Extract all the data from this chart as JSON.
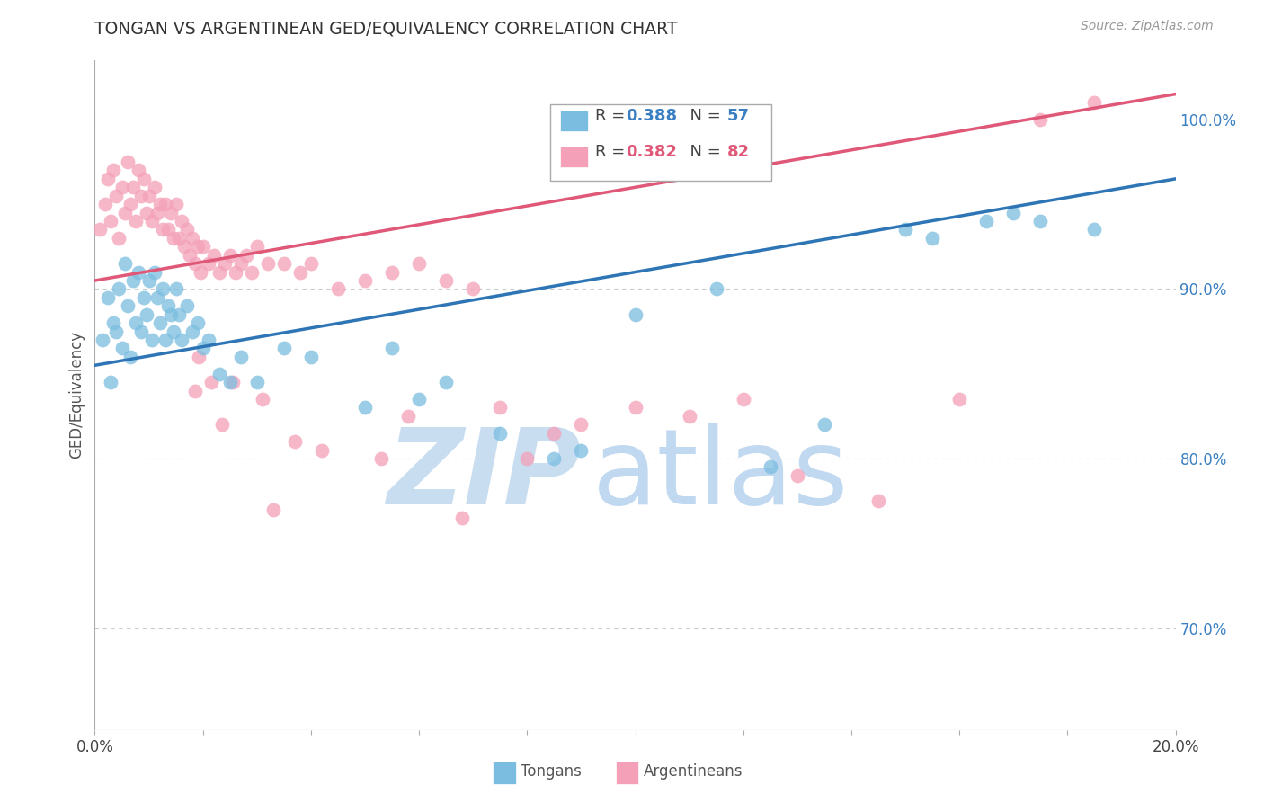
{
  "title": "TONGAN VS ARGENTINEAN GED/EQUIVALENCY CORRELATION CHART",
  "source": "Source: ZipAtlas.com",
  "ylabel": "GED/Equivalency",
  "yticks": [
    70.0,
    80.0,
    90.0,
    100.0
  ],
  "ytick_labels": [
    "70.0%",
    "80.0%",
    "90.0%",
    "100.0%"
  ],
  "x_min": 0.0,
  "x_max": 20.0,
  "y_min": 64.0,
  "y_max": 103.5,
  "tongan_color": "#7bbde0",
  "argentinean_color": "#f4a0b8",
  "tongan_R": 0.388,
  "tongan_N": 57,
  "argentinean_R": 0.382,
  "argentinean_N": 82,
  "watermark_zip": "ZIP",
  "watermark_atlas": "atlas",
  "watermark_color_zip": "#c8ddf0",
  "watermark_color_atlas": "#c0d8f0",
  "blue_line_color": "#2e75b6",
  "pink_line_color": "#e05878",
  "background_color": "#ffffff",
  "grid_color": "#cccccc",
  "tongan_scatter_x": [
    0.15,
    0.25,
    0.3,
    0.35,
    0.4,
    0.45,
    0.5,
    0.55,
    0.6,
    0.65,
    0.7,
    0.75,
    0.8,
    0.85,
    0.9,
    0.95,
    1.0,
    1.05,
    1.1,
    1.15,
    1.2,
    1.25,
    1.3,
    1.35,
    1.4,
    1.45,
    1.5,
    1.55,
    1.6,
    1.7,
    1.8,
    1.9,
    2.0,
    2.1,
    2.3,
    2.5,
    2.7,
    3.0,
    3.5,
    4.0,
    5.0,
    5.5,
    6.0,
    7.5,
    8.5,
    9.0,
    10.0,
    12.5,
    15.0,
    15.5,
    16.5,
    17.0,
    17.5,
    18.5,
    6.5,
    11.5,
    13.5
  ],
  "tongan_scatter_y": [
    87.0,
    89.5,
    84.5,
    88.0,
    87.5,
    90.0,
    86.5,
    91.5,
    89.0,
    86.0,
    90.5,
    88.0,
    91.0,
    87.5,
    89.5,
    88.5,
    90.5,
    87.0,
    91.0,
    89.5,
    88.0,
    90.0,
    87.0,
    89.0,
    88.5,
    87.5,
    90.0,
    88.5,
    87.0,
    89.0,
    87.5,
    88.0,
    86.5,
    87.0,
    85.0,
    84.5,
    86.0,
    84.5,
    86.5,
    86.0,
    83.0,
    86.5,
    83.5,
    81.5,
    80.0,
    80.5,
    88.5,
    79.5,
    93.5,
    93.0,
    94.0,
    94.5,
    94.0,
    93.5,
    84.5,
    90.0,
    82.0
  ],
  "argentinean_scatter_x": [
    0.1,
    0.2,
    0.25,
    0.3,
    0.35,
    0.4,
    0.45,
    0.5,
    0.55,
    0.6,
    0.65,
    0.7,
    0.75,
    0.8,
    0.85,
    0.9,
    0.95,
    1.0,
    1.05,
    1.1,
    1.15,
    1.2,
    1.25,
    1.3,
    1.35,
    1.4,
    1.45,
    1.5,
    1.55,
    1.6,
    1.65,
    1.7,
    1.75,
    1.8,
    1.85,
    1.9,
    1.95,
    2.0,
    2.1,
    2.2,
    2.3,
    2.4,
    2.5,
    2.6,
    2.7,
    2.8,
    2.9,
    3.0,
    3.2,
    3.5,
    3.8,
    4.0,
    4.5,
    5.0,
    5.5,
    6.0,
    6.5,
    7.0,
    7.5,
    8.0,
    8.5,
    9.0,
    10.0,
    11.0,
    12.0,
    13.0,
    14.5,
    16.0,
    17.5,
    18.5,
    2.15,
    2.35,
    1.85,
    3.1,
    4.2,
    5.8,
    3.7,
    6.8,
    5.3,
    2.55,
    1.92,
    3.3
  ],
  "argentinean_scatter_y": [
    93.5,
    95.0,
    96.5,
    94.0,
    97.0,
    95.5,
    93.0,
    96.0,
    94.5,
    97.5,
    95.0,
    96.0,
    94.0,
    97.0,
    95.5,
    96.5,
    94.5,
    95.5,
    94.0,
    96.0,
    94.5,
    95.0,
    93.5,
    95.0,
    93.5,
    94.5,
    93.0,
    95.0,
    93.0,
    94.0,
    92.5,
    93.5,
    92.0,
    93.0,
    91.5,
    92.5,
    91.0,
    92.5,
    91.5,
    92.0,
    91.0,
    91.5,
    92.0,
    91.0,
    91.5,
    92.0,
    91.0,
    92.5,
    91.5,
    91.5,
    91.0,
    91.5,
    90.0,
    90.5,
    91.0,
    91.5,
    90.5,
    90.0,
    83.0,
    80.0,
    81.5,
    82.0,
    83.0,
    82.5,
    83.5,
    79.0,
    77.5,
    83.5,
    100.0,
    101.0,
    84.5,
    82.0,
    84.0,
    83.5,
    80.5,
    82.5,
    81.0,
    76.5,
    80.0,
    84.5,
    86.0,
    77.0
  ],
  "tongan_line_x0": 0.0,
  "tongan_line_y0": 85.5,
  "tongan_line_x1": 20.0,
  "tongan_line_y1": 96.5,
  "argent_line_x0": 0.0,
  "argent_line_y0": 90.5,
  "argent_line_x1": 20.0,
  "argent_line_y1": 101.5
}
